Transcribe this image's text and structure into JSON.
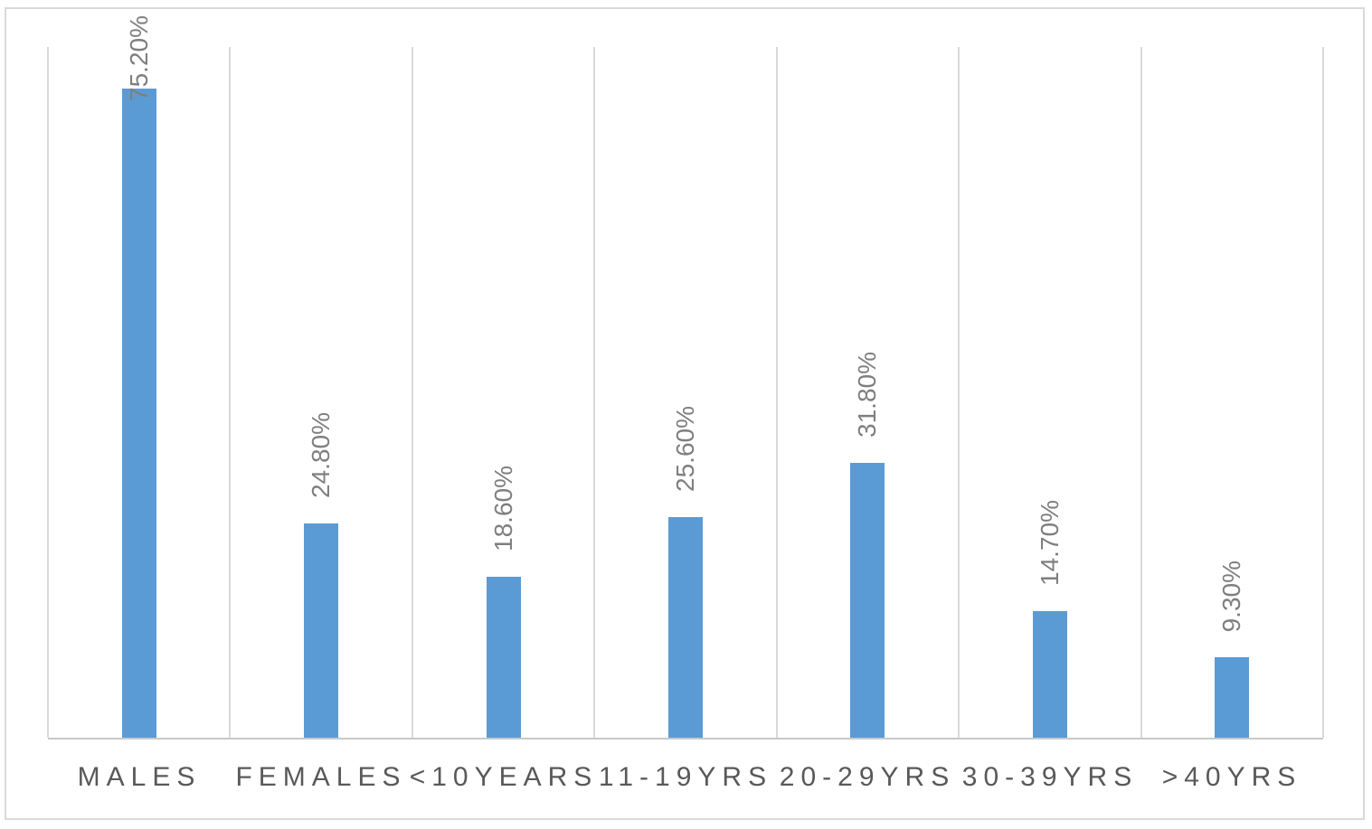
{
  "chart_data": {
    "type": "bar",
    "title": "",
    "xlabel": "",
    "ylabel": "",
    "categories": [
      "MALES",
      "FEMALES",
      "<10YEARS",
      "11-19YRS",
      "20-29YRS",
      "30-39YRS",
      ">40YRS"
    ],
    "values": [
      75.2,
      24.8,
      18.6,
      25.6,
      31.8,
      14.7,
      9.3
    ],
    "data_labels": [
      "75.20%",
      "24.80%",
      "18.60%",
      "25.60%",
      "31.80%",
      "14.70%",
      "9.30%"
    ],
    "ylim": [
      0,
      80
    ],
    "grid": "vertical category separators only",
    "legend": "none",
    "data_labels_rotation": "90deg counterclockwise above each bar",
    "colors": {
      "bar": "#5B9BD5",
      "data_label_text": "#7F7F7F",
      "axis_label_text": "#595959",
      "gridline": "#D9D9D9",
      "axis_line": "#C9C9C9",
      "figure_border": "#D9D9D9",
      "background": "#FFFFFF"
    }
  }
}
